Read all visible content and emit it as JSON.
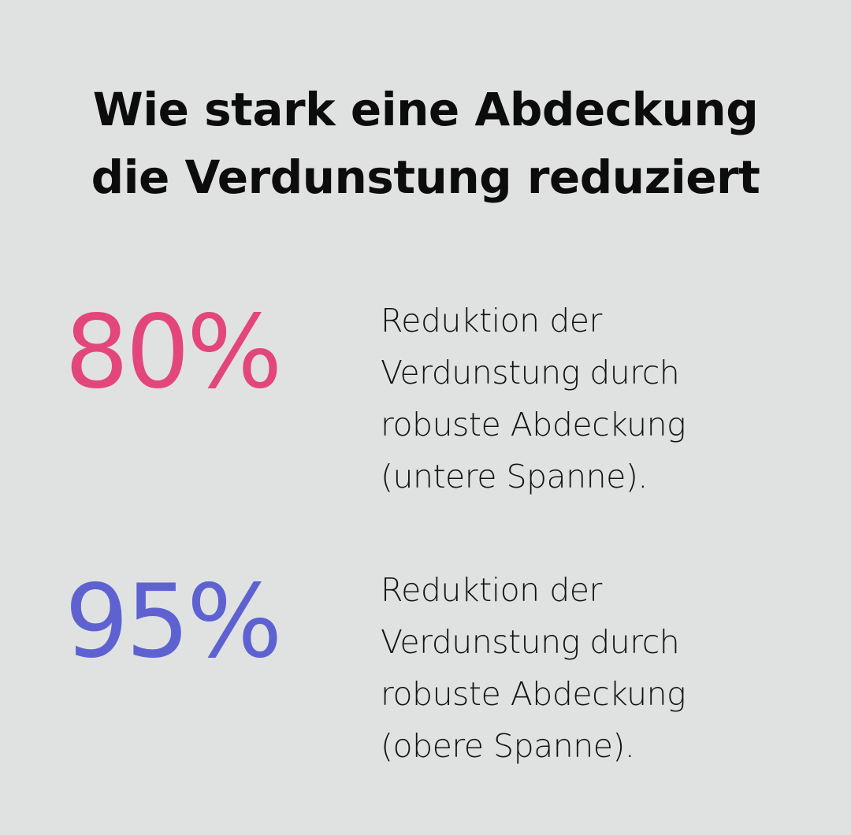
{
  "title": {
    "line1": "Wie stark eine Abdeckung",
    "line2": "die Verdunstung reduziert"
  },
  "stats": [
    {
      "value": "80%",
      "color": "#e3467c",
      "lines": [
        "Reduktion der",
        "Verdunstung durch",
        "robuste Abdeckung",
        "(untere Spanne)."
      ]
    },
    {
      "value": "95%",
      "color": "#5e62d1",
      "lines": [
        "Reduktion der",
        "Verdunstung durch",
        "robuste Abdeckung",
        "(obere Spanne)."
      ]
    }
  ]
}
